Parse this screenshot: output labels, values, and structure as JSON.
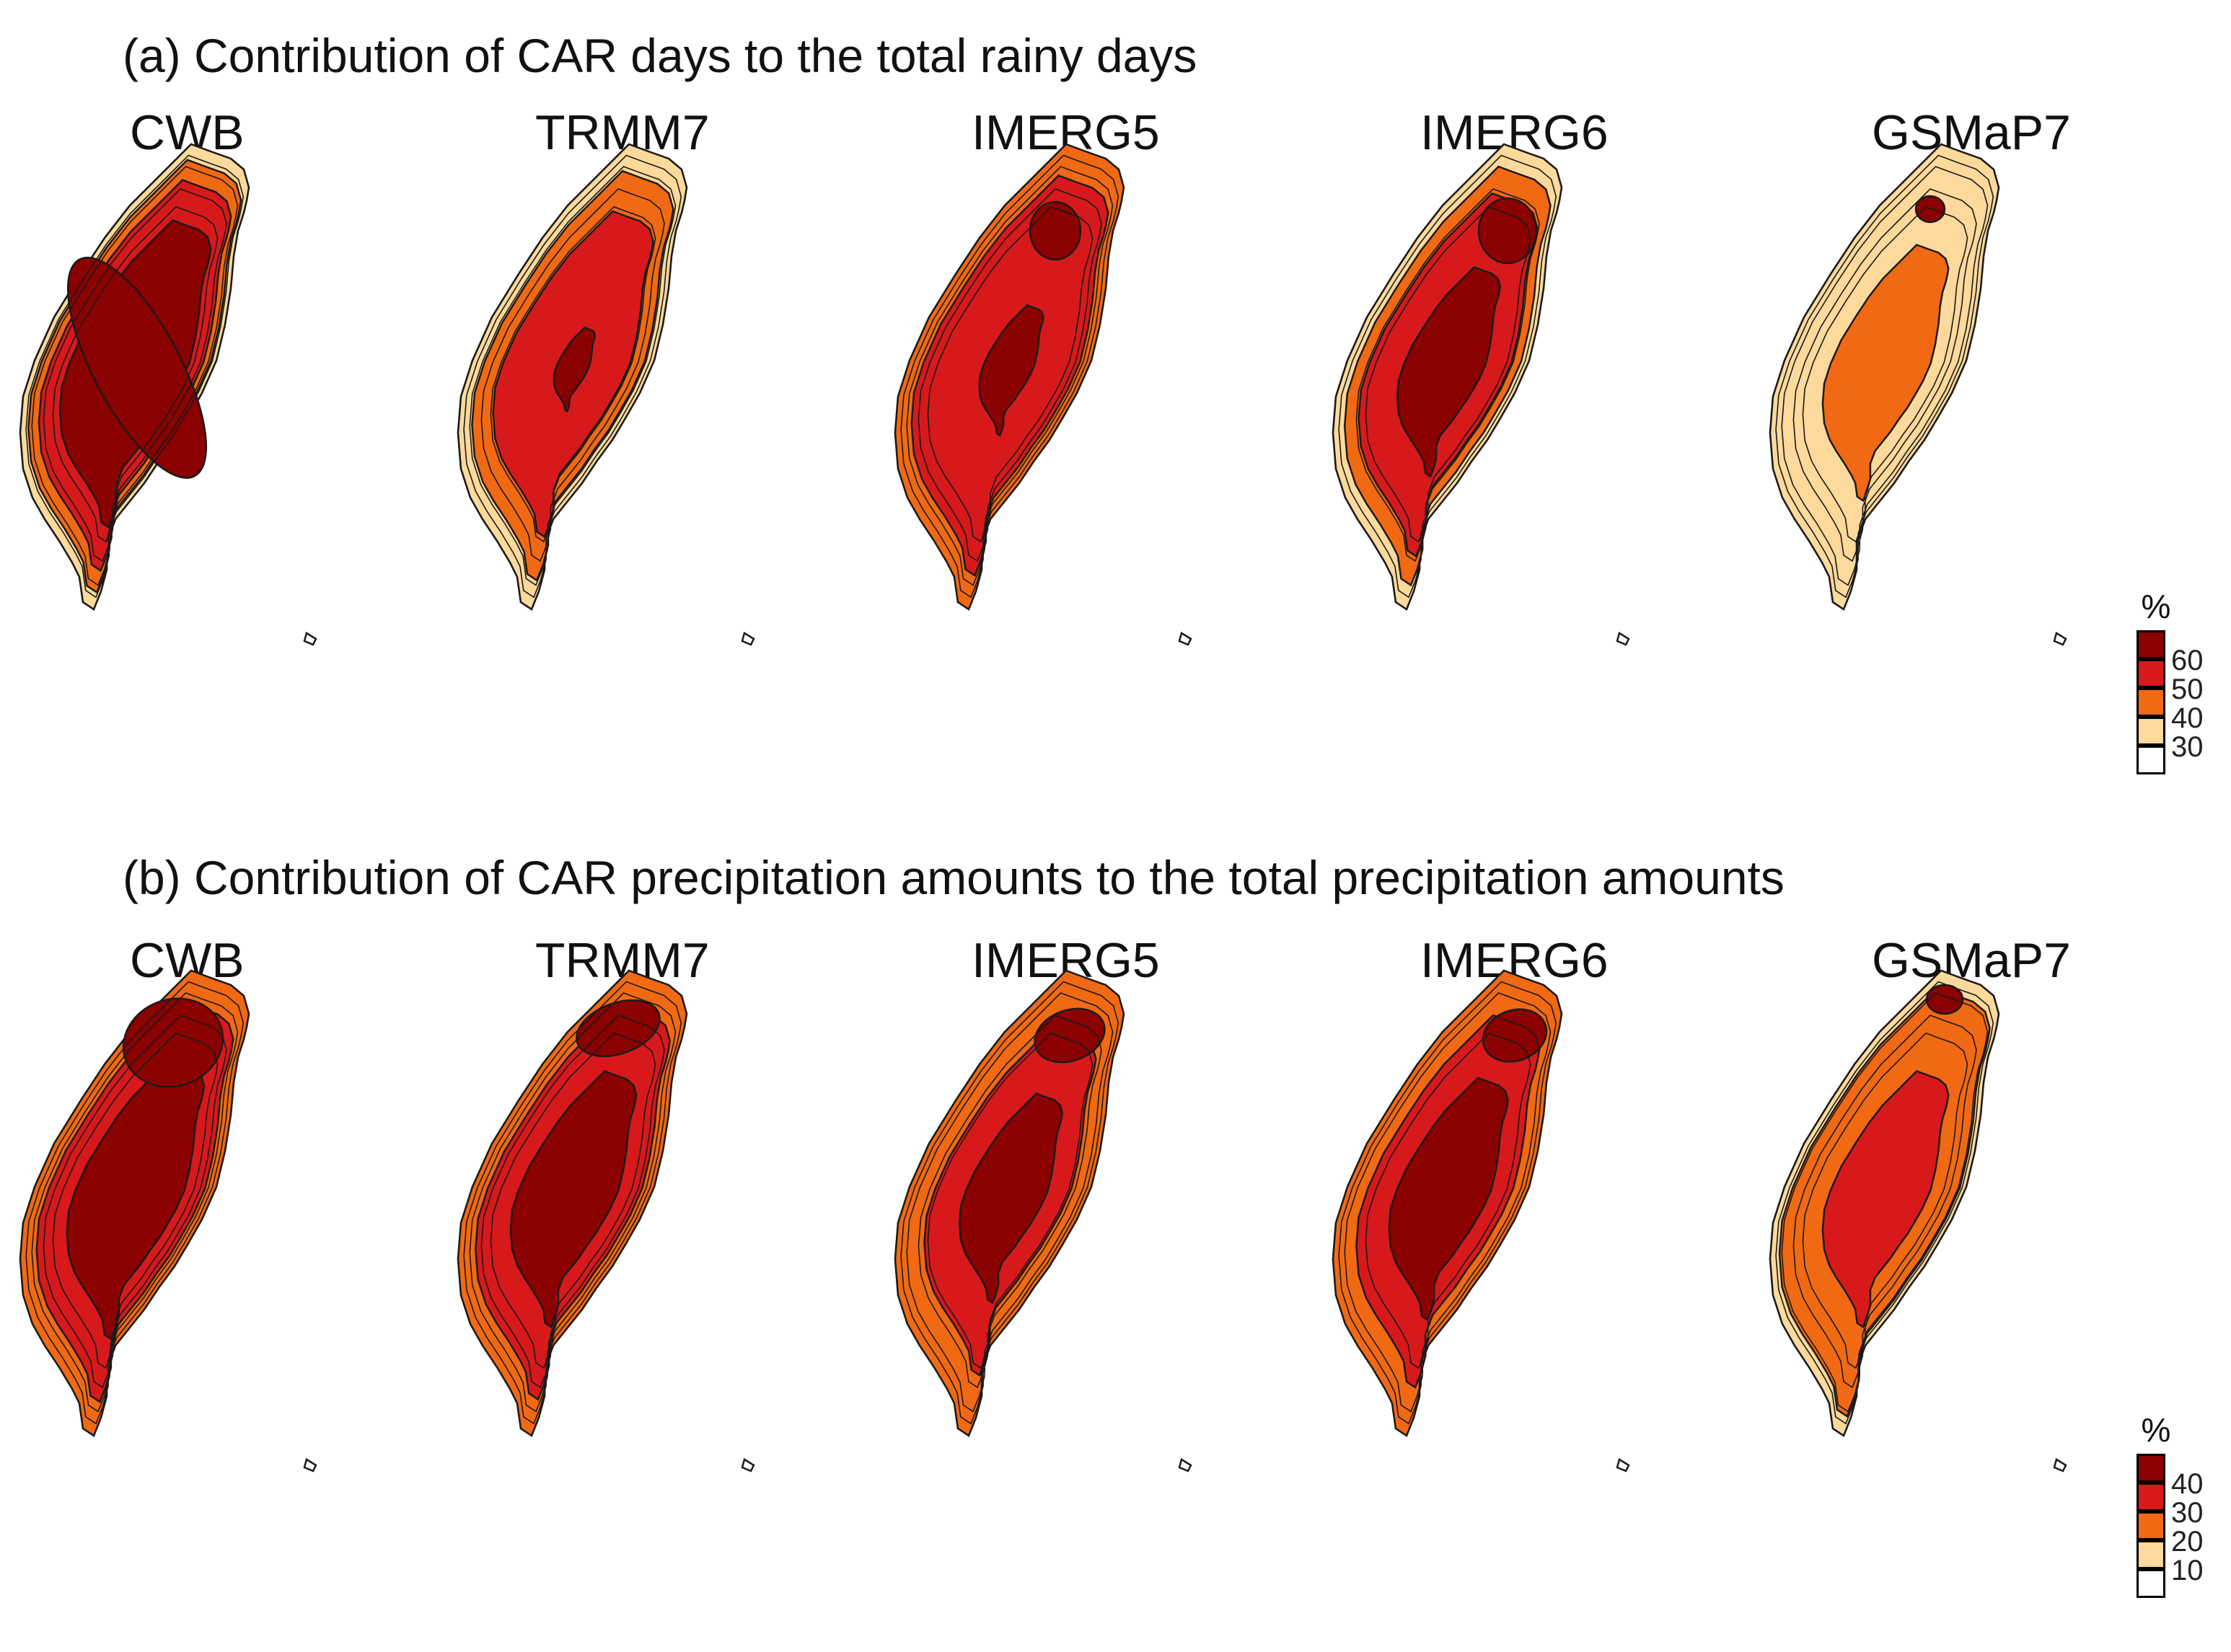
{
  "figure": {
    "panel_a": {
      "title": "(a) Contribution of CAR days to the total rainy days",
      "legend": {
        "unit": "%",
        "ticks": [
          "60",
          "50",
          "40",
          "30"
        ],
        "levels": [
          {
            "label": ">60",
            "color": "#8b0000"
          },
          {
            "label": "50-60",
            "color": "#d7191c"
          },
          {
            "label": "40-50",
            "color": "#f16913"
          },
          {
            "label": "30-40",
            "color": "#fdd99b"
          },
          {
            "label": "<30",
            "color": "#ffffff"
          }
        ]
      }
    },
    "panel_b": {
      "title": "(b) Contribution of CAR precipitation amounts to the total precipitation amounts",
      "legend": {
        "unit": "%",
        "ticks": [
          "40",
          "30",
          "20",
          "10"
        ],
        "levels": [
          {
            "label": ">40",
            "color": "#8b0000"
          },
          {
            "label": "30-40",
            "color": "#d7191c"
          },
          {
            "label": "20-30",
            "color": "#f16913"
          },
          {
            "label": "10-20",
            "color": "#fdd99b"
          },
          {
            "label": "<10",
            "color": "#ffffff"
          }
        ]
      }
    },
    "datasets": [
      "CWB",
      "TRMM7",
      "IMERG5",
      "IMERG6",
      "GSMaP7"
    ],
    "colors": {
      "darkest": "#8b0000",
      "red": "#d7191c",
      "orange": "#f16913",
      "light": "#fdd99b",
      "none": "#ffffff",
      "contour": "#1a1a1a"
    }
  }
}
